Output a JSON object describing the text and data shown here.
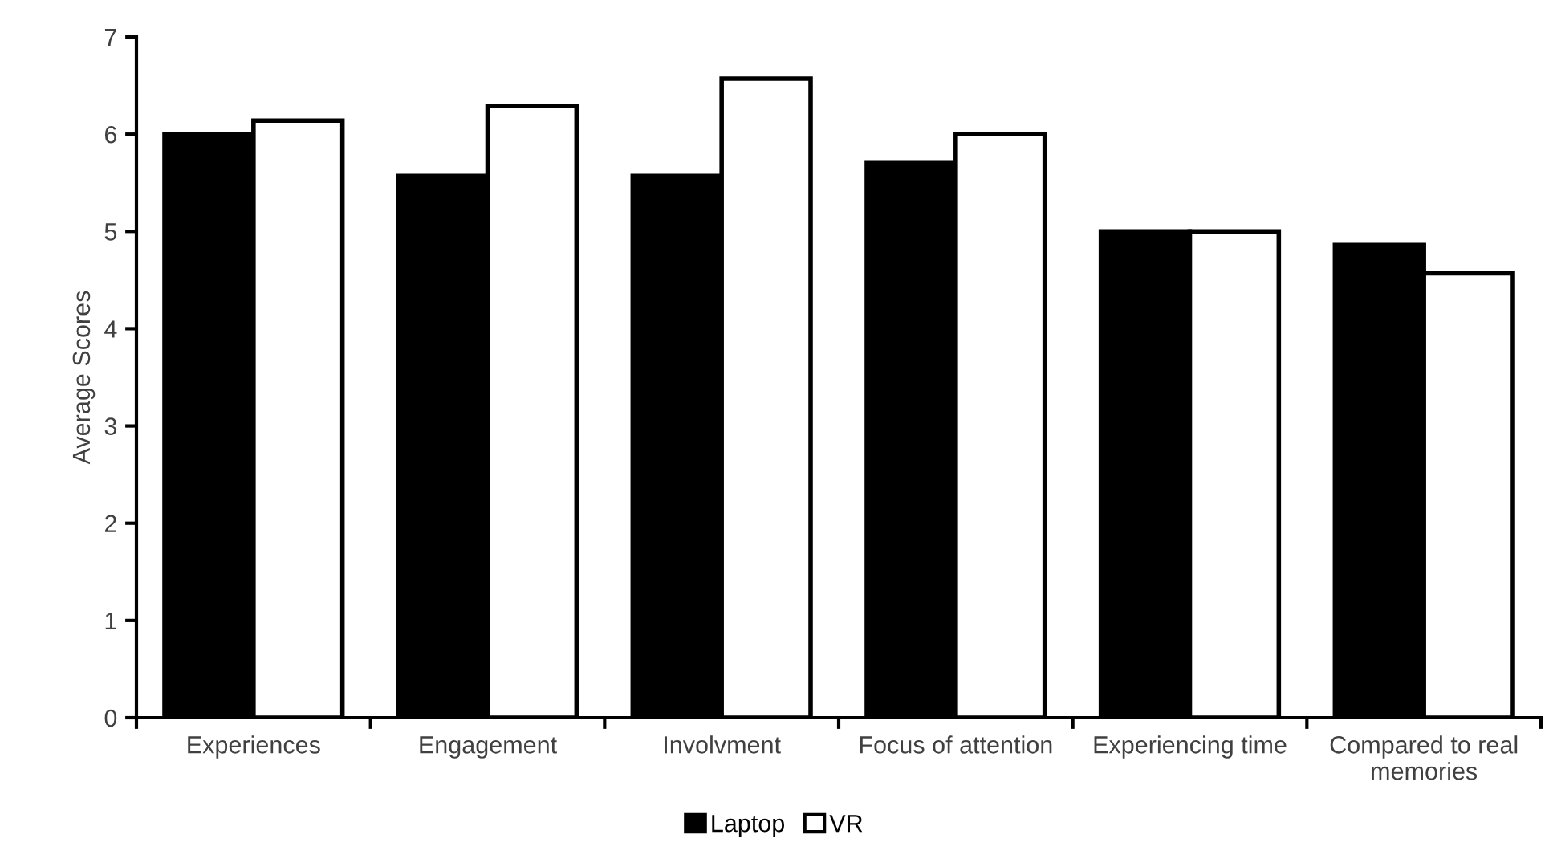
{
  "chart_data": {
    "type": "bar",
    "ylabel": "Average Scores",
    "categories": [
      "Experiences",
      "Engagement",
      "Involvment",
      "Focus of attention",
      "Experiencing time",
      "Compared to real\nmemories"
    ],
    "series": [
      {
        "name": "Laptop",
        "color": "#000000",
        "values": [
          6.0,
          5.57,
          5.57,
          5.71,
          5.0,
          4.86
        ]
      },
      {
        "name": "VR",
        "color": "#ffffff",
        "values": [
          6.14,
          6.29,
          6.57,
          6.0,
          5.0,
          4.57
        ]
      }
    ],
    "ylim": [
      0,
      7
    ],
    "yticks": [
      0,
      1,
      2,
      3,
      4,
      5,
      6,
      7
    ],
    "grid": false,
    "legend": "bottom"
  }
}
